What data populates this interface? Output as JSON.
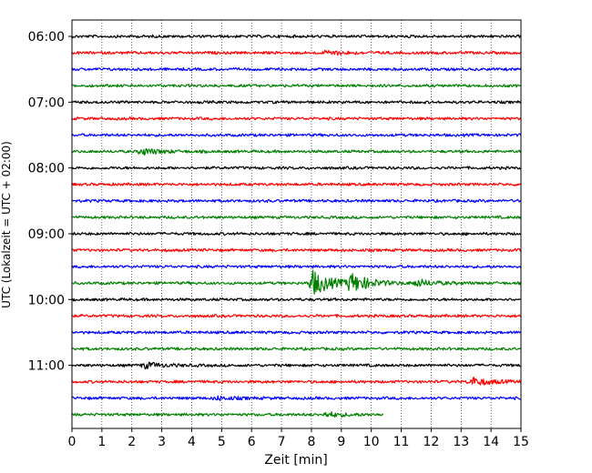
{
  "chart_data": {
    "type": "line",
    "title": "",
    "xlabel": "Zeit  [min]",
    "ylabel": "UTC (Lokalzeit = UTC + 02:00)",
    "xlim": [
      0,
      15
    ],
    "x_ticks": [
      "0",
      "1",
      "2",
      "3",
      "4",
      "5",
      "6",
      "7",
      "8",
      "9",
      "10",
      "11",
      "12",
      "13",
      "14",
      "15"
    ],
    "y_tick_labels": [
      "06:00",
      "07:00",
      "08:00",
      "09:00",
      "10:00",
      "11:00"
    ],
    "grid": "vertical dotted",
    "row_start": "06:00",
    "row_interval_minutes": 15,
    "colors": [
      "#000000",
      "#ff0000",
      "#0000ff",
      "#008000"
    ],
    "traces": [
      {
        "start": "06:00",
        "color": "#000000",
        "end_min": 15,
        "events": []
      },
      {
        "start": "06:15",
        "color": "#ff0000",
        "end_min": 15,
        "events": [
          {
            "t": 8.5,
            "amp": 0.4
          }
        ]
      },
      {
        "start": "06:30",
        "color": "#0000ff",
        "end_min": 15,
        "events": []
      },
      {
        "start": "06:45",
        "color": "#008000",
        "end_min": 15,
        "events": []
      },
      {
        "start": "07:00",
        "color": "#000000",
        "end_min": 15,
        "events": []
      },
      {
        "start": "07:15",
        "color": "#ff0000",
        "end_min": 15,
        "events": []
      },
      {
        "start": "07:30",
        "color": "#0000ff",
        "end_min": 15,
        "events": []
      },
      {
        "start": "07:45",
        "color": "#008000",
        "end_min": 15,
        "events": [
          {
            "t": 2.3,
            "amp": 0.6
          }
        ]
      },
      {
        "start": "08:00",
        "color": "#000000",
        "end_min": 15,
        "events": []
      },
      {
        "start": "08:15",
        "color": "#ff0000",
        "end_min": 15,
        "events": []
      },
      {
        "start": "08:30",
        "color": "#0000ff",
        "end_min": 15,
        "events": []
      },
      {
        "start": "08:45",
        "color": "#008000",
        "end_min": 15,
        "events": []
      },
      {
        "start": "09:00",
        "color": "#000000",
        "end_min": 15,
        "events": []
      },
      {
        "start": "09:15",
        "color": "#ff0000",
        "end_min": 15,
        "events": []
      },
      {
        "start": "09:30",
        "color": "#0000ff",
        "end_min": 15,
        "events": []
      },
      {
        "start": "09:45",
        "color": "#008000",
        "end_min": 15,
        "events": [
          {
            "t": 8.0,
            "amp": 2.4
          },
          {
            "t": 9.3,
            "amp": 1.6
          },
          {
            "t": 11.5,
            "amp": 0.6
          }
        ]
      },
      {
        "start": "10:00",
        "color": "#000000",
        "end_min": 15,
        "events": []
      },
      {
        "start": "10:15",
        "color": "#ff0000",
        "end_min": 15,
        "events": []
      },
      {
        "start": "10:30",
        "color": "#0000ff",
        "end_min": 15,
        "events": []
      },
      {
        "start": "10:45",
        "color": "#008000",
        "end_min": 15,
        "events": []
      },
      {
        "start": "11:00",
        "color": "#000000",
        "end_min": 15,
        "events": [
          {
            "t": 2.4,
            "amp": 0.5
          }
        ]
      },
      {
        "start": "11:15",
        "color": "#ff0000",
        "end_min": 15,
        "events": [
          {
            "t": 13.3,
            "amp": 0.8
          }
        ]
      },
      {
        "start": "11:30",
        "color": "#0000ff",
        "end_min": 15,
        "events": [
          {
            "t": 4.8,
            "amp": 0.3
          }
        ]
      },
      {
        "start": "11:45",
        "color": "#008000",
        "end_min": 10.4,
        "events": [
          {
            "t": 8.5,
            "amp": 0.4
          }
        ]
      }
    ]
  }
}
